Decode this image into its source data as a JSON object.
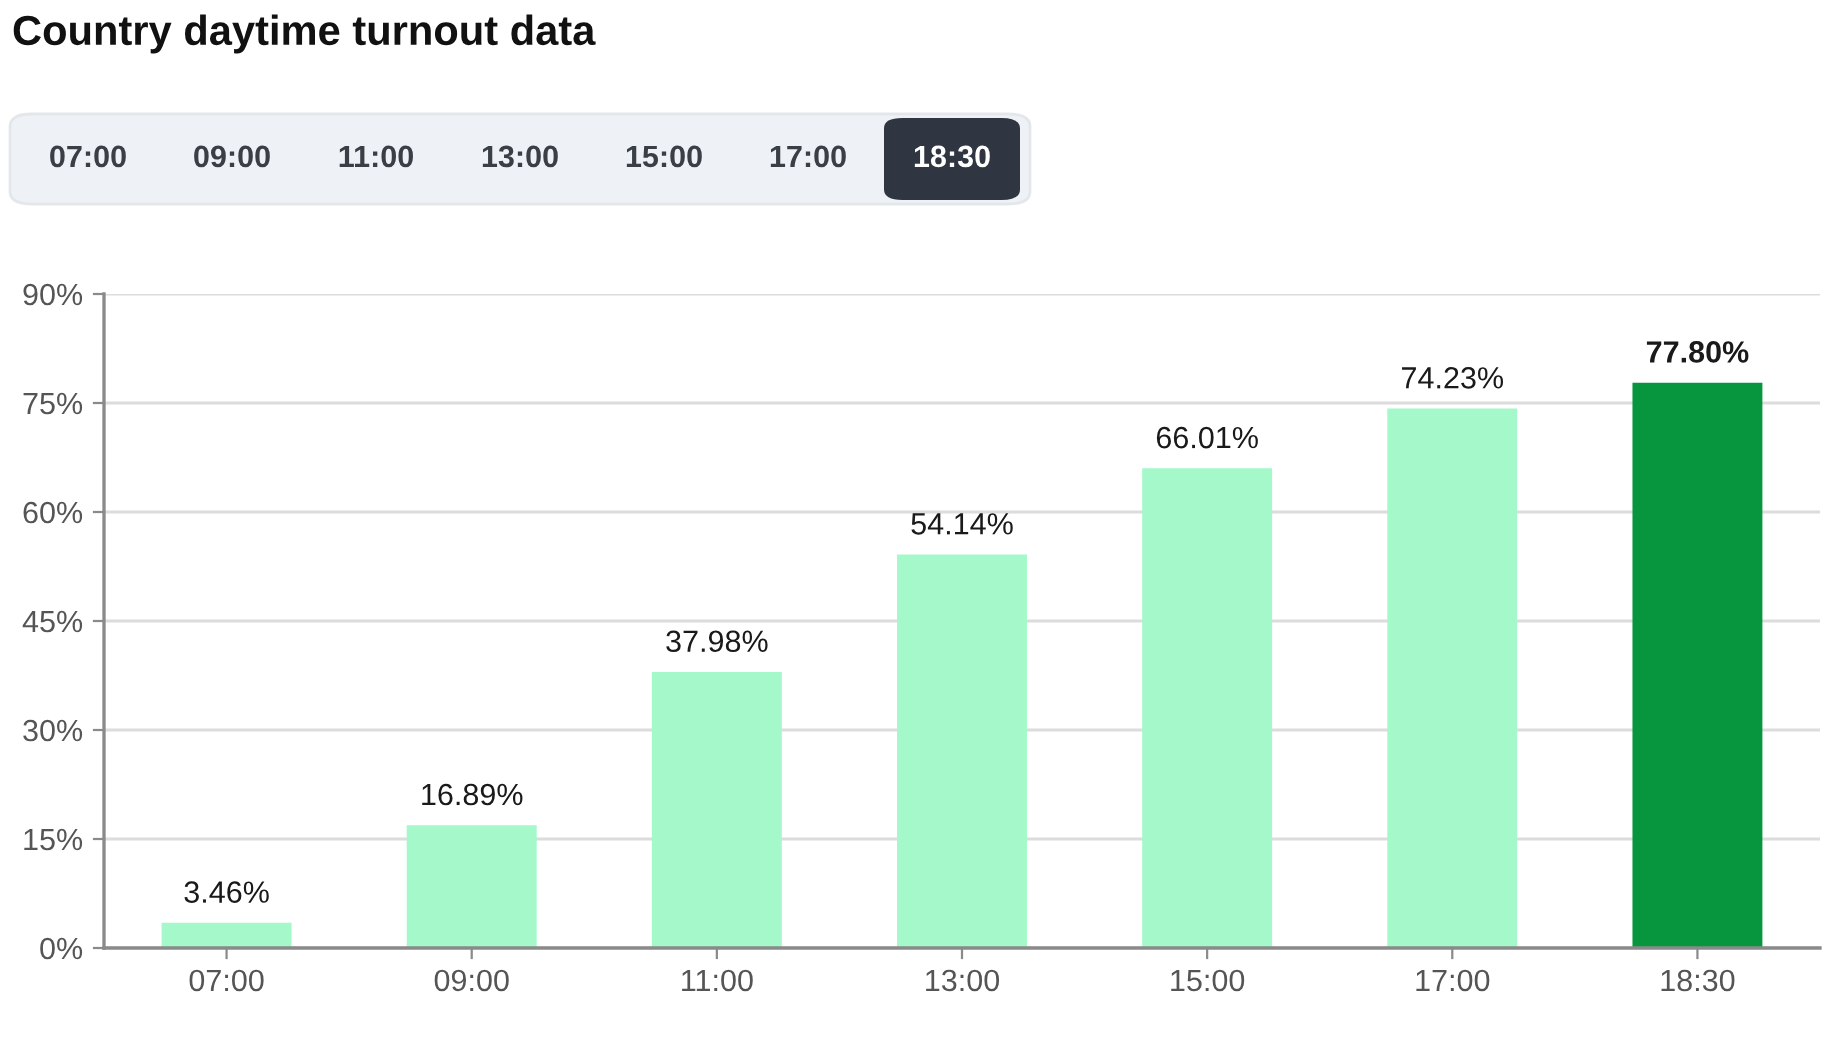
{
  "chart_data": {
    "type": "bar",
    "title": "Country daytime turnout data",
    "categories": [
      "07:00",
      "09:00",
      "11:00",
      "13:00",
      "15:00",
      "17:00",
      "18:30"
    ],
    "values": [
      3.46,
      16.89,
      37.98,
      54.14,
      66.01,
      74.23,
      77.8
    ],
    "colors": [
      "#a4f8c9",
      "#a4f8c9",
      "#a4f8c9",
      "#a4f8c9",
      "#a4f8c9",
      "#a4f8c9",
      "#07963d"
    ],
    "value_labels": [
      "3.46%",
      "16.89%",
      "37.98%",
      "54.14%",
      "66.01%",
      "74.23%",
      "77.80%"
    ],
    "ylim": [
      0,
      90
    ],
    "yticks": [
      {
        "value": 0,
        "label": "0%"
      },
      {
        "value": 15,
        "label": "15%"
      },
      {
        "value": 30,
        "label": "30%"
      },
      {
        "value": 45,
        "label": "45%"
      },
      {
        "value": 60,
        "label": "60%"
      },
      {
        "value": 75,
        "label": "75%"
      },
      {
        "value": 90,
        "label": "90%"
      }
    ],
    "grid": "y",
    "annotations": [
      "07:00",
      "09:00",
      "11:00",
      "13:00",
      "15:00",
      "17:00",
      "18:30"
    ]
  }
}
